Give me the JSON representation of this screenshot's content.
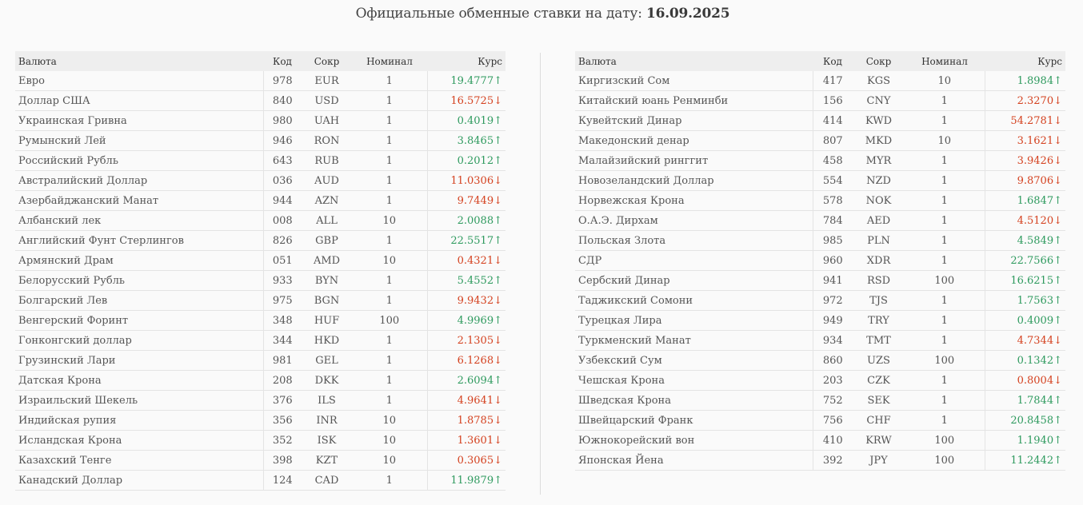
{
  "title": {
    "text": "Официальные обменные ставки на дату:",
    "date": "16.09.2025"
  },
  "columns": {
    "name": "Валюта",
    "code": "Код",
    "abbr": "Сокр",
    "nominal": "Номинал",
    "rate": "Курс"
  },
  "colors": {
    "up": "#2e9a5e",
    "down": "#d4411f",
    "header_bg": "#eeeeee"
  },
  "left_rows": [
    {
      "name": "Евро",
      "code": "978",
      "abbr": "EUR",
      "nominal": "1",
      "rate": "19.4777↑",
      "trend": "up"
    },
    {
      "name": "Доллар США",
      "code": "840",
      "abbr": "USD",
      "nominal": "1",
      "rate": "16.5725↓",
      "trend": "down"
    },
    {
      "name": "Украинская Гривна",
      "code": "980",
      "abbr": "UAH",
      "nominal": "1",
      "rate": "0.4019↑",
      "trend": "up"
    },
    {
      "name": "Румынский Лей",
      "code": "946",
      "abbr": "RON",
      "nominal": "1",
      "rate": "3.8465↑",
      "trend": "up"
    },
    {
      "name": "Российский Рубль",
      "code": "643",
      "abbr": "RUB",
      "nominal": "1",
      "rate": "0.2012↑",
      "trend": "up"
    },
    {
      "name": "Австралийский Доллар",
      "code": "036",
      "abbr": "AUD",
      "nominal": "1",
      "rate": "11.0306↓",
      "trend": "down"
    },
    {
      "name": "Азербайджанский Манат",
      "code": "944",
      "abbr": "AZN",
      "nominal": "1",
      "rate": "9.7449↓",
      "trend": "down"
    },
    {
      "name": "Албанский лек",
      "code": "008",
      "abbr": "ALL",
      "nominal": "10",
      "rate": "2.0088↑",
      "trend": "up"
    },
    {
      "name": "Английский Фунт Стерлингов",
      "code": "826",
      "abbr": "GBP",
      "nominal": "1",
      "rate": "22.5517↑",
      "trend": "up"
    },
    {
      "name": "Армянский Драм",
      "code": "051",
      "abbr": "AMD",
      "nominal": "10",
      "rate": "0.4321↓",
      "trend": "down"
    },
    {
      "name": "Белорусский Рубль",
      "code": "933",
      "abbr": "BYN",
      "nominal": "1",
      "rate": "5.4552↑",
      "trend": "up"
    },
    {
      "name": "Болгарский Лев",
      "code": "975",
      "abbr": "BGN",
      "nominal": "1",
      "rate": "9.9432↓",
      "trend": "down"
    },
    {
      "name": "Венгерский Форинт",
      "code": "348",
      "abbr": "HUF",
      "nominal": "100",
      "rate": "4.9969↑",
      "trend": "up"
    },
    {
      "name": "Гонконгский доллар",
      "code": "344",
      "abbr": "HKD",
      "nominal": "1",
      "rate": "2.1305↓",
      "trend": "down"
    },
    {
      "name": "Грузинский Лари",
      "code": "981",
      "abbr": "GEL",
      "nominal": "1",
      "rate": "6.1268↓",
      "trend": "down"
    },
    {
      "name": "Датская Крона",
      "code": "208",
      "abbr": "DKK",
      "nominal": "1",
      "rate": "2.6094↑",
      "trend": "up"
    },
    {
      "name": "Израильский Шекель",
      "code": "376",
      "abbr": "ILS",
      "nominal": "1",
      "rate": "4.9641↓",
      "trend": "down"
    },
    {
      "name": "Индийская рупия",
      "code": "356",
      "abbr": "INR",
      "nominal": "10",
      "rate": "1.8785↓",
      "trend": "down"
    },
    {
      "name": "Исландская Крона",
      "code": "352",
      "abbr": "ISK",
      "nominal": "10",
      "rate": "1.3601↓",
      "trend": "down"
    },
    {
      "name": "Казахский Тенге",
      "code": "398",
      "abbr": "KZT",
      "nominal": "10",
      "rate": "0.3065↓",
      "trend": "down"
    },
    {
      "name": "Канадский Доллар",
      "code": "124",
      "abbr": "CAD",
      "nominal": "1",
      "rate": "11.9879↑",
      "trend": "up"
    }
  ],
  "right_rows": [
    {
      "name": "Киргизский Сом",
      "code": "417",
      "abbr": "KGS",
      "nominal": "10",
      "rate": "1.8984↑",
      "trend": "up"
    },
    {
      "name": "Китайский юань Ренминби",
      "code": "156",
      "abbr": "CNY",
      "nominal": "1",
      "rate": "2.3270↓",
      "trend": "down"
    },
    {
      "name": "Кувейтский Динар",
      "code": "414",
      "abbr": "KWD",
      "nominal": "1",
      "rate": "54.2781↓",
      "trend": "down"
    },
    {
      "name": "Македонский денар",
      "code": "807",
      "abbr": "MKD",
      "nominal": "10",
      "rate": "3.1621↓",
      "trend": "down"
    },
    {
      "name": "Малайзийский ринггит",
      "code": "458",
      "abbr": "MYR",
      "nominal": "1",
      "rate": "3.9426↓",
      "trend": "down"
    },
    {
      "name": "Новозеландский Доллар",
      "code": "554",
      "abbr": "NZD",
      "nominal": "1",
      "rate": "9.8706↓",
      "trend": "down"
    },
    {
      "name": "Норвежская Крона",
      "code": "578",
      "abbr": "NOK",
      "nominal": "1",
      "rate": "1.6847↑",
      "trend": "up"
    },
    {
      "name": "О.А.Э. Дирхам",
      "code": "784",
      "abbr": "AED",
      "nominal": "1",
      "rate": "4.5120↓",
      "trend": "down"
    },
    {
      "name": "Польская Злота",
      "code": "985",
      "abbr": "PLN",
      "nominal": "1",
      "rate": "4.5849↑",
      "trend": "up"
    },
    {
      "name": "СДР",
      "code": "960",
      "abbr": "XDR",
      "nominal": "1",
      "rate": "22.7566↑",
      "trend": "up"
    },
    {
      "name": "Сербский Динар",
      "code": "941",
      "abbr": "RSD",
      "nominal": "100",
      "rate": "16.6215↑",
      "trend": "up"
    },
    {
      "name": "Таджикский Сомони",
      "code": "972",
      "abbr": "TJS",
      "nominal": "1",
      "rate": "1.7563↑",
      "trend": "up"
    },
    {
      "name": "Турецкая Лира",
      "code": "949",
      "abbr": "TRY",
      "nominal": "1",
      "rate": "0.4009↑",
      "trend": "up"
    },
    {
      "name": "Туркменский Манат",
      "code": "934",
      "abbr": "TMT",
      "nominal": "1",
      "rate": "4.7344↓",
      "trend": "down"
    },
    {
      "name": "Узбекский Сум",
      "code": "860",
      "abbr": "UZS",
      "nominal": "100",
      "rate": "0.1342↑",
      "trend": "up"
    },
    {
      "name": "Чешская Крона",
      "code": "203",
      "abbr": "CZK",
      "nominal": "1",
      "rate": "0.8004↓",
      "trend": "down"
    },
    {
      "name": "Шведская Крона",
      "code": "752",
      "abbr": "SEK",
      "nominal": "1",
      "rate": "1.7844↑",
      "trend": "up"
    },
    {
      "name": "Швейцарский Франк",
      "code": "756",
      "abbr": "CHF",
      "nominal": "1",
      "rate": "20.8458↑",
      "trend": "up"
    },
    {
      "name": "Южнокорейский вон",
      "code": "410",
      "abbr": "KRW",
      "nominal": "100",
      "rate": "1.1940↑",
      "trend": "up"
    },
    {
      "name": "Японская Йена",
      "code": "392",
      "abbr": "JPY",
      "nominal": "100",
      "rate": "11.2442↑",
      "trend": "up"
    }
  ]
}
